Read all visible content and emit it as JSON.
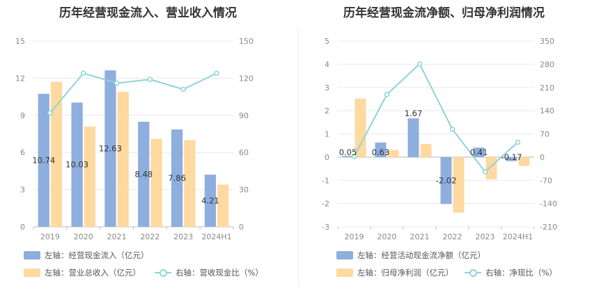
{
  "colors": {
    "blue": "#8eaede",
    "orange": "#fed9a0",
    "cyan": "#8fd3dc",
    "grid": "#e8e8e8"
  },
  "chart_data": [
    {
      "type": "bar",
      "title": "历年经营现金流入、营业收入情况",
      "categories": [
        "2019",
        "2020",
        "2021",
        "2022",
        "2023",
        "2024H1"
      ],
      "left_axis": {
        "min": 0,
        "max": 15,
        "ticks": [
          "0",
          "3",
          "6",
          "9",
          "12",
          "15"
        ]
      },
      "right_axis": {
        "min": 0,
        "max": 150,
        "ticks": [
          "0",
          "30",
          "60",
          "90",
          "120",
          "150"
        ]
      },
      "series": [
        {
          "name": "左轴：经营现金流入（亿元）",
          "axis": "left",
          "kind": "bar",
          "color": "#8eaede",
          "values": [
            10.74,
            10.03,
            12.63,
            8.48,
            7.86,
            4.21
          ],
          "labels": [
            "10.74",
            "10.03",
            "12.63",
            "8.48",
            "7.86",
            "4.21"
          ]
        },
        {
          "name": "左轴：营业总收入（亿元）",
          "axis": "left",
          "kind": "bar",
          "color": "#fed9a0",
          "values": [
            11.7,
            8.1,
            10.9,
            7.1,
            7.0,
            3.4
          ]
        },
        {
          "name": "右轴：营收现金比（%）",
          "axis": "right",
          "kind": "line",
          "color": "#8fd3dc",
          "values": [
            92,
            124,
            116,
            119,
            111,
            124
          ]
        }
      ],
      "legend": [
        "左轴：经营现金流入（亿元）",
        "左轴：营业总收入（亿元）",
        "右轴：营收现金比（%）"
      ]
    },
    {
      "type": "bar",
      "title": "历年经营现金流净额、归母净利润情况",
      "categories": [
        "2019",
        "2020",
        "2021",
        "2022",
        "2023",
        "2024H1"
      ],
      "left_axis": {
        "min": -3,
        "max": 5,
        "ticks": [
          "-3",
          "-2",
          "-1",
          "0",
          "1",
          "2",
          "3",
          "4",
          "5"
        ]
      },
      "right_axis": {
        "min": -210,
        "max": 350,
        "ticks": [
          "-210",
          "-140",
          "-70",
          "0",
          "70",
          "140",
          "210",
          "280",
          "350"
        ]
      },
      "series": [
        {
          "name": "左轴：经营活动现金流净额（亿元）",
          "axis": "left",
          "kind": "bar",
          "color": "#8eaede",
          "values": [
            0.05,
            0.63,
            1.67,
            -2.02,
            0.41,
            -0.17
          ],
          "labels": [
            "0.05",
            "0.63",
            "1.67",
            "-2.02",
            "0.41",
            "-0.17"
          ]
        },
        {
          "name": "左轴：归母净利润（亿元）",
          "axis": "left",
          "kind": "bar",
          "color": "#fed9a0",
          "values": [
            2.52,
            0.31,
            0.57,
            -2.39,
            -0.95,
            -0.38
          ]
        },
        {
          "name": "右轴：净现比（%）",
          "axis": "right",
          "kind": "line",
          "color": "#8fd3dc",
          "values": [
            2,
            189,
            281,
            84,
            -44,
            45
          ]
        }
      ],
      "legend": [
        "左轴：经营活动现金流净额（亿元）",
        "左轴：归母净利润（亿元）",
        "右轴：净现比（%）"
      ]
    }
  ]
}
